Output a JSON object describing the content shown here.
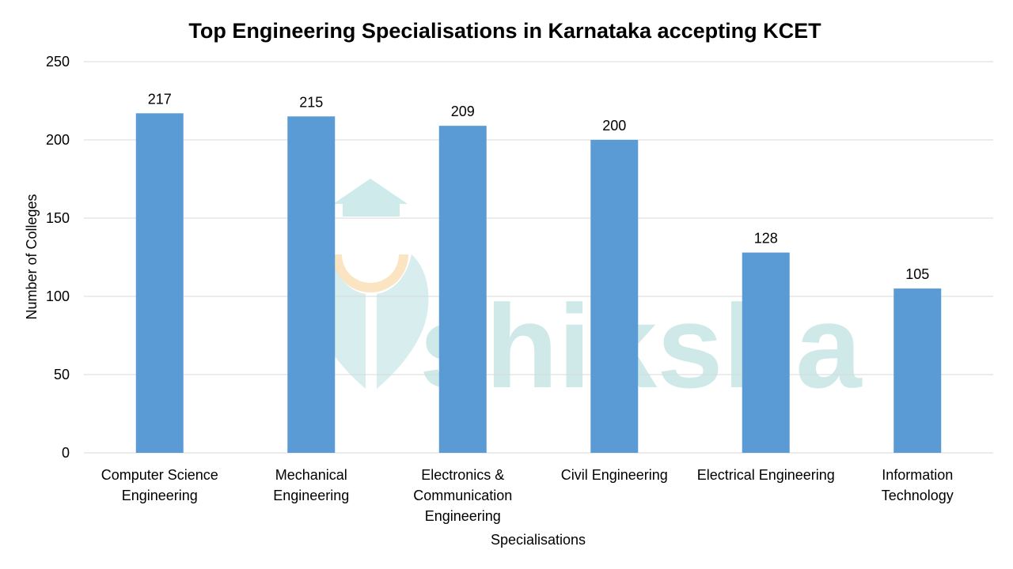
{
  "watermark": {
    "text": "shiksha",
    "icon": "graduation-cap-pen-nib-icon",
    "colors": {
      "teal": "#a8d8d8",
      "orange": "#f8d9a8"
    }
  },
  "chart_data": {
    "type": "bar",
    "title": "Top Engineering Specialisations in Karnataka accepting KCET",
    "xlabel": "Specialisations",
    "ylabel": "Number of Colleges",
    "ylim": [
      0,
      250
    ],
    "yticks": [
      0,
      50,
      100,
      150,
      200,
      250
    ],
    "grid": true,
    "bar_color": "#5b9bd5",
    "categories": [
      [
        "Computer Science",
        "Engineering"
      ],
      [
        "Mechanical",
        "Engineering"
      ],
      [
        "Electronics &",
        "Communication",
        "Engineering"
      ],
      [
        "Civil Engineering"
      ],
      [
        "Electrical Engineering"
      ],
      [
        "Information",
        "Technology"
      ]
    ],
    "values": [
      217,
      215,
      209,
      200,
      128,
      105
    ]
  }
}
